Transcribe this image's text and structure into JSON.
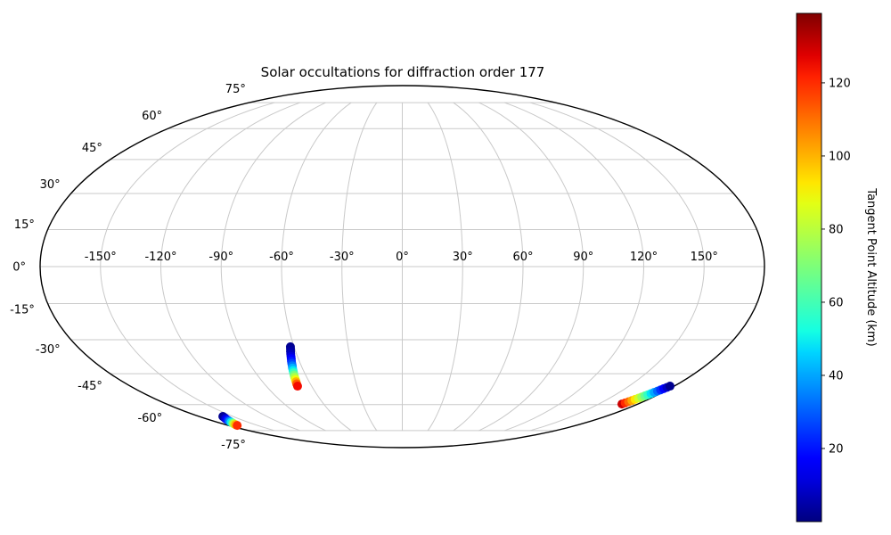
{
  "figure": {
    "title": "Solar occultations for diffraction order 177",
    "background": "#ffffff"
  },
  "map": {
    "projection": "mollweide",
    "boundary_color": "#000000",
    "grid_color": "#c9c9c9",
    "zero_meridian_color": "#c9c9c9",
    "lon_gridlines_deg": [
      -150,
      -120,
      -90,
      -60,
      -30,
      0,
      30,
      60,
      90,
      120,
      150
    ],
    "lon_labels": [
      "-150°",
      "-120°",
      "-90°",
      "-60°",
      "-30°",
      "0°",
      "30°",
      "60°",
      "90°",
      "120°",
      "150°"
    ],
    "lat_gridlines_deg": [
      -75,
      -60,
      -45,
      -30,
      -15,
      0,
      15,
      30,
      45,
      60,
      75
    ],
    "lat_labels": [
      "-75°",
      "-60°",
      "-45°",
      "-30°",
      "-15°",
      "0°",
      "15°",
      "30°",
      "45°",
      "60°",
      "75°"
    ],
    "grid_lat_extent_deg": 75
  },
  "colorbar": {
    "label": "Tangent Point Altitude (km)",
    "colormap": "jet",
    "vmin": 0,
    "vmax": 139,
    "ticks": [
      20,
      40,
      60,
      80,
      100,
      120
    ]
  },
  "chart_data": {
    "type": "scatter",
    "projection": "mollweide",
    "title": "Solar occultations for diffraction order 177",
    "colorbar_label": "Tangent Point Altitude (km)",
    "color_by": "altitude_km",
    "colormap": "jet",
    "color_range_km": [
      0,
      139
    ],
    "marker_radius_px": 5,
    "series": [
      {
        "name": "occultation-track-1",
        "note": "points are [lon_deg, lat_deg, tangent_point_altitude_km]",
        "points": [
          [
            -62.0,
            -33.0,
            2.0
          ],
          [
            -62.4,
            -34.0,
            2.8
          ],
          [
            -62.9,
            -35.1,
            4.6
          ],
          [
            -63.3,
            -36.1,
            7.4
          ],
          [
            -63.7,
            -37.2,
            11.1
          ],
          [
            -64.1,
            -38.2,
            15.6
          ],
          [
            -64.6,
            -39.3,
            20.9
          ],
          [
            -65.0,
            -40.3,
            26.9
          ],
          [
            -65.4,
            -41.4,
            33.7
          ],
          [
            -65.9,
            -42.4,
            41.1
          ],
          [
            -66.3,
            -43.5,
            49.3
          ],
          [
            -66.7,
            -44.5,
            58.2
          ],
          [
            -67.2,
            -45.6,
            67.7
          ],
          [
            -67.6,
            -46.6,
            77.9
          ],
          [
            -68.0,
            -47.7,
            88.8
          ],
          [
            -68.4,
            -48.7,
            100.2
          ],
          [
            -68.9,
            -49.7,
            112.3
          ],
          [
            -69.3,
            -50.8,
            125.0
          ]
        ]
      },
      {
        "name": "occultation-track-2",
        "note": "points are [lon_deg, lat_deg, tangent_point_altitude_km]",
        "points": [
          [
            -158.9,
            -66.4,
            2.0
          ],
          [
            -160.0,
            -66.9,
            3.0
          ],
          [
            -161.1,
            -67.4,
            5.9
          ],
          [
            -162.2,
            -67.8,
            10.8
          ],
          [
            -163.3,
            -68.3,
            17.6
          ],
          [
            -164.4,
            -68.8,
            26.4
          ],
          [
            -165.5,
            -69.3,
            37.1
          ],
          [
            -166.6,
            -69.8,
            49.7
          ],
          [
            -167.7,
            -70.3,
            64.4
          ],
          [
            -168.8,
            -70.7,
            81.0
          ],
          [
            -169.9,
            -71.2,
            99.5
          ],
          [
            -171.0,
            -71.7,
            120.0
          ]
        ]
      },
      {
        "name": "occultation-track-3",
        "note": "points are [lon_deg, lat_deg, tangent_point_altitude_km]",
        "points": [
          [
            167.7,
            -59.7,
            130.0
          ],
          [
            168.3,
            -59.1,
            120.6
          ],
          [
            169.0,
            -58.5,
            111.4
          ],
          [
            169.6,
            -57.9,
            102.1
          ],
          [
            170.2,
            -57.3,
            93.0
          ],
          [
            170.9,
            -56.7,
            84.0
          ],
          [
            171.5,
            -56.1,
            75.0
          ],
          [
            172.1,
            -55.5,
            66.1
          ],
          [
            172.8,
            -55.0,
            57.4
          ],
          [
            173.4,
            -54.4,
            48.7
          ],
          [
            174.0,
            -53.8,
            40.2
          ],
          [
            174.7,
            -53.2,
            31.9
          ],
          [
            175.3,
            -52.6,
            23.8
          ],
          [
            175.9,
            -52.0,
            15.9
          ],
          [
            176.6,
            -51.4,
            8.6
          ],
          [
            177.2,
            -50.8,
            2.0
          ]
        ]
      }
    ]
  }
}
